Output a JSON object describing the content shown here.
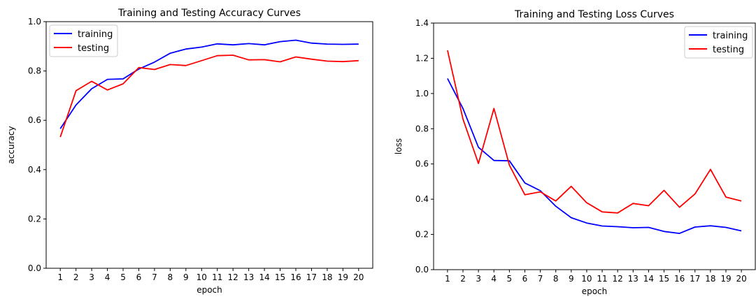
{
  "chart_data": [
    {
      "type": "line",
      "title": "Training and Testing Accuracy Curves",
      "xlabel": "epoch",
      "ylabel": "accuracy",
      "x": [
        1,
        2,
        3,
        4,
        5,
        6,
        7,
        8,
        9,
        10,
        11,
        12,
        13,
        14,
        15,
        16,
        17,
        18,
        19,
        20
      ],
      "xticks": [
        "1",
        "2",
        "3",
        "4",
        "5",
        "6",
        "7",
        "8",
        "9",
        "10",
        "11",
        "12",
        "13",
        "14",
        "15",
        "16",
        "17",
        "18",
        "19",
        "20"
      ],
      "ylim": [
        0,
        1.0
      ],
      "yticks": [
        "0.0",
        "0.2",
        "0.4",
        "0.6",
        "0.8",
        "1.0"
      ],
      "grid": false,
      "legend_position": "top-left",
      "series": [
        {
          "name": "training",
          "color": "#0000ff",
          "values": [
            0.566,
            0.662,
            0.728,
            0.766,
            0.768,
            0.808,
            0.836,
            0.872,
            0.889,
            0.897,
            0.91,
            0.906,
            0.911,
            0.906,
            0.919,
            0.925,
            0.913,
            0.909,
            0.908,
            0.909
          ]
        },
        {
          "name": "testing",
          "color": "#ff0000",
          "values": [
            0.532,
            0.72,
            0.758,
            0.723,
            0.748,
            0.814,
            0.806,
            0.826,
            0.822,
            0.842,
            0.862,
            0.864,
            0.845,
            0.846,
            0.837,
            0.857,
            0.848,
            0.84,
            0.838,
            0.842
          ]
        }
      ]
    },
    {
      "type": "line",
      "title": "Training and Testing Loss Curves",
      "xlabel": "epoch",
      "ylabel": "loss",
      "x": [
        1,
        2,
        3,
        4,
        5,
        6,
        7,
        8,
        9,
        10,
        11,
        12,
        13,
        14,
        15,
        16,
        17,
        18,
        19,
        20
      ],
      "xticks": [
        "1",
        "2",
        "3",
        "4",
        "5",
        "6",
        "7",
        "8",
        "9",
        "10",
        "11",
        "12",
        "13",
        "14",
        "15",
        "16",
        "17",
        "18",
        "19",
        "20"
      ],
      "ylim": [
        0,
        1.4
      ],
      "yticks": [
        "0.0",
        "0.2",
        "0.4",
        "0.6",
        "0.8",
        "1.0",
        "1.2",
        "1.4"
      ],
      "grid": false,
      "legend_position": "top-right",
      "series": [
        {
          "name": "training",
          "color": "#0000ff",
          "values": [
            1.085,
            0.915,
            0.695,
            0.62,
            0.618,
            0.492,
            0.448,
            0.36,
            0.295,
            0.265,
            0.248,
            0.244,
            0.238,
            0.24,
            0.217,
            0.206,
            0.242,
            0.249,
            0.24,
            0.22
          ]
        },
        {
          "name": "testing",
          "color": "#ff0000",
          "values": [
            1.245,
            0.855,
            0.603,
            0.915,
            0.593,
            0.425,
            0.442,
            0.39,
            0.473,
            0.38,
            0.328,
            0.322,
            0.376,
            0.363,
            0.45,
            0.354,
            0.43,
            0.569,
            0.412,
            0.39
          ]
        }
      ]
    }
  ]
}
